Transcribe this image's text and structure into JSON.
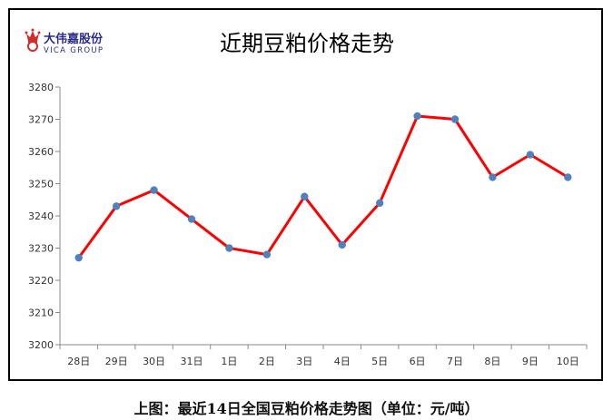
{
  "logo": {
    "name_cn": "大伟嘉股份",
    "name_en": "VICA GROUP",
    "brand_color": "#2b2b8c",
    "crown_color": "#d42b2b"
  },
  "caption": "上图：最近14日全国豆粕价格走势图（单位：元/吨）",
  "chart_data": {
    "type": "line",
    "title": "近期豆粕价格走势",
    "categories": [
      "28日",
      "29日",
      "30日",
      "31日",
      "1日",
      "2日",
      "3日",
      "4日",
      "5日",
      "6日",
      "7日",
      "8日",
      "9日",
      "10日"
    ],
    "values": [
      3227,
      3243,
      3248,
      3239,
      3230,
      3228,
      3246,
      3231,
      3244,
      3271,
      3270,
      3252,
      3259,
      3252
    ],
    "ylim": [
      3200,
      3280
    ],
    "yticks": [
      3200,
      3210,
      3220,
      3230,
      3240,
      3250,
      3260,
      3270,
      3280
    ],
    "grid": false,
    "line_color": "#ff0000",
    "marker_color": "#4f81bd"
  }
}
